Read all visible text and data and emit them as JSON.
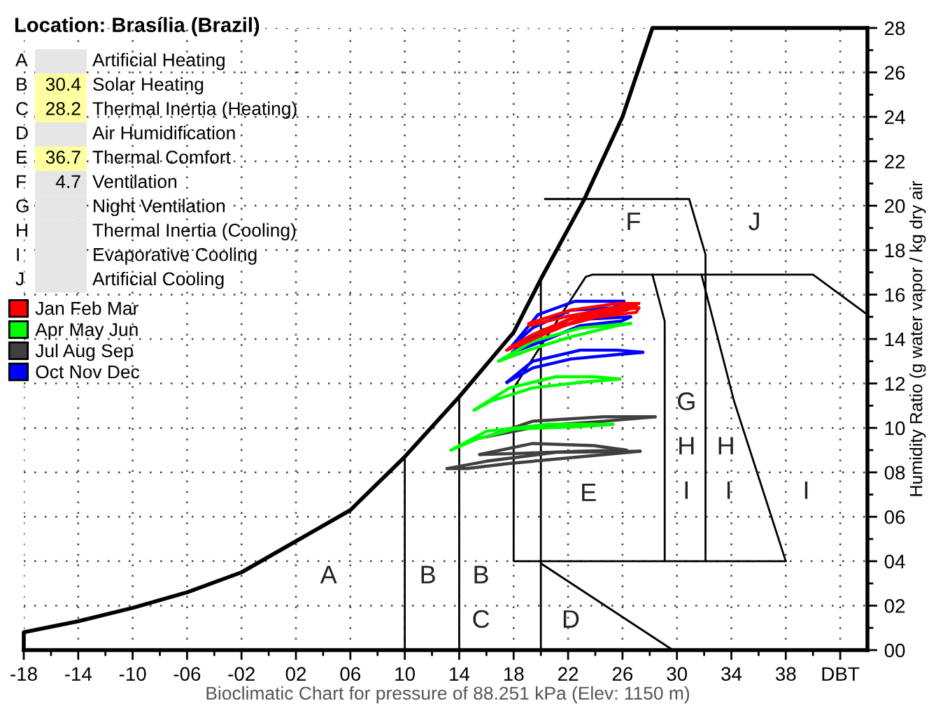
{
  "chart_data": [
    {
      "type": "other",
      "title": "Location: Brasília (Brazil)",
      "categories": [
        "A",
        "B",
        "C",
        "D",
        "E",
        "F",
        "G",
        "H",
        "I",
        "J"
      ],
      "values": [
        null,
        30.4,
        28.2,
        null,
        36.7,
        4.7,
        null,
        null,
        null,
        null
      ],
      "data_labels": true,
      "colors": [
        "#e6e6e6",
        "#ffffa0",
        "#ffffa0",
        "#e6e6e6",
        "#ffffa0",
        "#e6e6e6",
        "#e6e6e6",
        "#e6e6e6",
        "#e6e6e6",
        "#e6e6e6"
      ],
      "annotations": [
        "Artificial Heating",
        "Solar Heating",
        "Thermal Inertia (Heating)",
        "Air Humidification",
        "Thermal Comfort",
        "Ventilation",
        "Night Ventilation",
        "Thermal Inertia (Cooling)",
        "Evaporative Cooling",
        "Artificial Cooling"
      ]
    },
    {
      "type": "line",
      "ylabel": "Humidity Ratio (g water vapor / kg dry air",
      "xlim": [
        -18,
        44
      ],
      "ylim": [
        0,
        28
      ],
      "grid": true,
      "legend": "left",
      "xticks": [
        -18,
        {
          "value": -16,
          "label": null
        },
        -14,
        {
          "value": -12,
          "label": null
        },
        -10,
        {
          "value": -8,
          "label": null
        },
        {
          "value": -6,
          "label": "-06"
        },
        {
          "value": -4,
          "label": null
        },
        {
          "value": -2,
          "label": "-02"
        },
        {
          "value": 0,
          "label": null
        },
        {
          "value": 2,
          "label": "02"
        },
        {
          "value": 4,
          "label": null
        },
        {
          "value": 6,
          "label": "06"
        },
        {
          "value": 8,
          "label": null
        },
        10,
        {
          "value": 12,
          "label": null
        },
        14,
        {
          "value": 16,
          "label": null
        },
        18,
        {
          "value": 20,
          "label": null
        },
        22,
        {
          "value": 24,
          "label": null
        },
        26,
        {
          "value": 28,
          "label": null
        },
        30,
        {
          "value": 32,
          "label": null
        },
        34,
        {
          "value": 36,
          "label": null
        },
        38,
        {
          "value": 40,
          "label": null
        },
        {
          "value": 42,
          "label": "DBT"
        }
      ],
      "yticks": [
        {
          "value": 0,
          "label": "00"
        },
        {
          "value": 1,
          "label": null
        },
        {
          "value": 2,
          "label": "02"
        },
        {
          "value": 3,
          "label": null
        },
        {
          "value": 4,
          "label": "04"
        },
        {
          "value": 5,
          "label": null
        },
        {
          "value": 6,
          "label": "06"
        },
        {
          "value": 7,
          "label": null
        },
        {
          "value": 8,
          "label": "08"
        },
        {
          "value": 9,
          "label": null
        },
        10,
        {
          "value": 11,
          "label": null
        },
        12,
        {
          "value": 13,
          "label": null
        },
        14,
        {
          "value": 15,
          "label": null
        },
        16,
        {
          "value": 17,
          "label": null
        },
        18,
        {
          "value": 19,
          "label": null
        },
        20,
        {
          "value": 21,
          "label": null
        },
        22,
        {
          "value": 23,
          "label": null
        },
        24,
        {
          "value": 25,
          "label": null
        },
        26,
        {
          "value": 27,
          "label": null
        },
        28
      ],
      "annotations": [
        "Bioclimatic Chart for pressure of 88.251 kPa (Elev: 1150 m)",
        "A",
        "B",
        "B",
        "C",
        "D",
        "E",
        "F",
        "J",
        "G",
        "H",
        "I",
        "H",
        "I",
        "I"
      ],
      "series": [
        {
          "color": "#000000",
          "x": [
            -18,
            -18,
            -14,
            -10,
            -6,
            -2,
            2,
            6,
            10,
            14,
            18,
            20,
            23.2,
            26,
            28.2,
            44
          ],
          "values": [
            0,
            0.8,
            1.3,
            1.9,
            2.6,
            3.5,
            4.9,
            6.3,
            8.7,
            11.4,
            14.3,
            16.7,
            20.3,
            24,
            28,
            28
          ]
        },
        {
          "color": "#000000",
          "x": [
            10,
            10
          ],
          "values": [
            0,
            8.7
          ]
        },
        {
          "color": "#000000",
          "x": [
            14,
            14
          ],
          "values": [
            0,
            11.4
          ]
        },
        {
          "color": "#000000",
          "x": [
            20,
            20
          ],
          "values": [
            0,
            16.7
          ]
        },
        {
          "color": "#000000",
          "x": [
            20,
            29.7
          ],
          "values": [
            3.9,
            0
          ]
        },
        {
          "color": "#000000",
          "x": [
            18,
            18,
            38
          ],
          "values": [
            11.8,
            4,
            4
          ]
        },
        {
          "color": "#000000",
          "x": [
            18,
            23.3,
            23.8,
            40,
            44
          ],
          "values": [
            11.8,
            16.8,
            16.9,
            16.9,
            15.1
          ]
        },
        {
          "color": "#000000",
          "x": [
            28.2,
            29.1,
            29.1
          ],
          "values": [
            16.9,
            14.8,
            4
          ]
        },
        {
          "color": "#000000",
          "x": [
            20.3,
            30.9,
            32.1,
            32.1
          ],
          "values": [
            20.3,
            20.3,
            17.8,
            4
          ]
        },
        {
          "color": "#000000",
          "x": [
            31.8,
            34.2,
            38
          ],
          "values": [
            16.9,
            11.2,
            4
          ]
        },
        {
          "name": "Jan Feb Mar",
          "color": "#ff0000",
          "x": [
            17.7,
            19.1,
            22.2,
            25.3,
            27.2
          ],
          "values": [
            13.6,
            14.1,
            14.9,
            15.3,
            15.4
          ]
        },
        {
          "color": "#ff0000",
          "x": [
            17.7,
            18.4,
            21.1,
            24.2,
            27.0,
            27.2
          ],
          "values": [
            13.6,
            13.7,
            14.5,
            15.0,
            15.2,
            15.4
          ]
        },
        {
          "color": "#ff0000",
          "x": [
            17.5,
            19.4,
            22.9,
            27.0
          ],
          "values": [
            13.5,
            14.2,
            15.1,
            15.5
          ]
        },
        {
          "color": "#ff0000",
          "x": [
            17.5,
            19.4,
            22.9,
            26.3,
            27.0
          ],
          "values": [
            13.5,
            14.0,
            14.9,
            15.3,
            15.5
          ]
        },
        {
          "color": "#ff0000",
          "x": [
            19.1,
            22.2,
            25.6,
            27.2
          ],
          "values": [
            14.7,
            15.3,
            15.6,
            15.6
          ]
        },
        {
          "color": "#ff0000",
          "x": [
            19.1,
            21.8,
            25.3,
            27.2
          ],
          "values": [
            14.6,
            15.0,
            15.4,
            15.6
          ]
        },
        {
          "name": "Apr May Jun",
          "color": "#00ff00",
          "x": [
            16.9,
            19.4,
            22.9,
            26.6
          ],
          "values": [
            13.0,
            13.9,
            14.5,
            14.7
          ]
        },
        {
          "color": "#00ff00",
          "x": [
            16.9,
            19.1,
            22.2,
            25.6,
            26.6
          ],
          "values": [
            13.0,
            13.5,
            14.1,
            14.6,
            14.7
          ]
        },
        {
          "color": "#00ff00",
          "x": [
            15.1,
            17.7,
            21.1,
            23.9,
            25.8
          ],
          "values": [
            10.8,
            11.8,
            12.3,
            12.3,
            12.2
          ]
        },
        {
          "color": "#00ff00",
          "x": [
            15.1,
            16.3,
            19.4,
            22.9,
            25.8
          ],
          "values": [
            10.8,
            11.2,
            11.8,
            12.05,
            12.2
          ]
        },
        {
          "color": "#00ff00",
          "x": [
            13.4,
            16.0,
            20.5,
            25.3
          ],
          "values": [
            9.0,
            9.85,
            10.16,
            10.16
          ]
        },
        {
          "color": "#00ff00",
          "x": [
            13.4,
            15.3,
            18.0,
            22.9,
            25.3
          ],
          "values": [
            9.0,
            9.5,
            9.95,
            10.06,
            10.16
          ]
        },
        {
          "name": "Jul Aug Sep",
          "color": "#404040",
          "x": [
            16.0,
            19.4,
            24.6,
            28.4
          ],
          "values": [
            9.6,
            10.3,
            10.5,
            10.5
          ]
        },
        {
          "color": "#404040",
          "x": [
            16.0,
            20.1,
            24.6,
            28.4
          ],
          "values": [
            9.6,
            10.1,
            10.3,
            10.5
          ]
        },
        {
          "color": "#404040",
          "x": [
            15.5,
            19.4,
            23.9,
            26.3
          ],
          "values": [
            8.8,
            9.3,
            9.2,
            9.0
          ]
        },
        {
          "color": "#404040",
          "x": [
            15.5,
            18.7,
            22.9,
            26.3
          ],
          "values": [
            8.8,
            8.86,
            8.95,
            9.0
          ]
        },
        {
          "color": "#404040",
          "x": [
            13.1,
            16.0,
            21.1,
            27.3
          ],
          "values": [
            8.17,
            8.5,
            8.9,
            8.95
          ]
        },
        {
          "color": "#404040",
          "x": [
            13.1,
            14.6,
            17.7,
            22.9,
            27.3
          ],
          "values": [
            8.17,
            8.17,
            8.4,
            8.7,
            8.95
          ]
        },
        {
          "name": "Oct Nov Dec",
          "color": "#0000ff",
          "x": [
            17.9,
            19.8,
            22.5,
            26.1
          ],
          "values": [
            13.7,
            15.1,
            15.7,
            15.7
          ]
        },
        {
          "color": "#0000ff",
          "x": [
            17.9,
            19.4,
            22.2,
            25.3,
            26.1
          ],
          "values": [
            13.7,
            14.5,
            15.3,
            15.4,
            15.7
          ]
        },
        {
          "color": "#0000ff",
          "x": [
            17.9,
            20.1,
            23.5,
            26.6
          ],
          "values": [
            13.4,
            14.4,
            14.9,
            15.0
          ]
        },
        {
          "color": "#0000ff",
          "x": [
            17.9,
            20.1,
            22.9,
            25.9,
            26.6
          ],
          "values": [
            13.4,
            13.9,
            14.6,
            14.8,
            15.0
          ]
        },
        {
          "color": "#0000ff",
          "x": [
            17.5,
            19.4,
            22.9,
            25.6,
            27.5
          ],
          "values": [
            12.05,
            13.0,
            13.5,
            13.5,
            13.4
          ]
        },
        {
          "color": "#0000ff",
          "x": [
            17.5,
            19.4,
            22.2,
            25.6,
            27.5
          ],
          "values": [
            12.05,
            12.7,
            13.1,
            13.3,
            13.4
          ]
        }
      ]
    }
  ]
}
